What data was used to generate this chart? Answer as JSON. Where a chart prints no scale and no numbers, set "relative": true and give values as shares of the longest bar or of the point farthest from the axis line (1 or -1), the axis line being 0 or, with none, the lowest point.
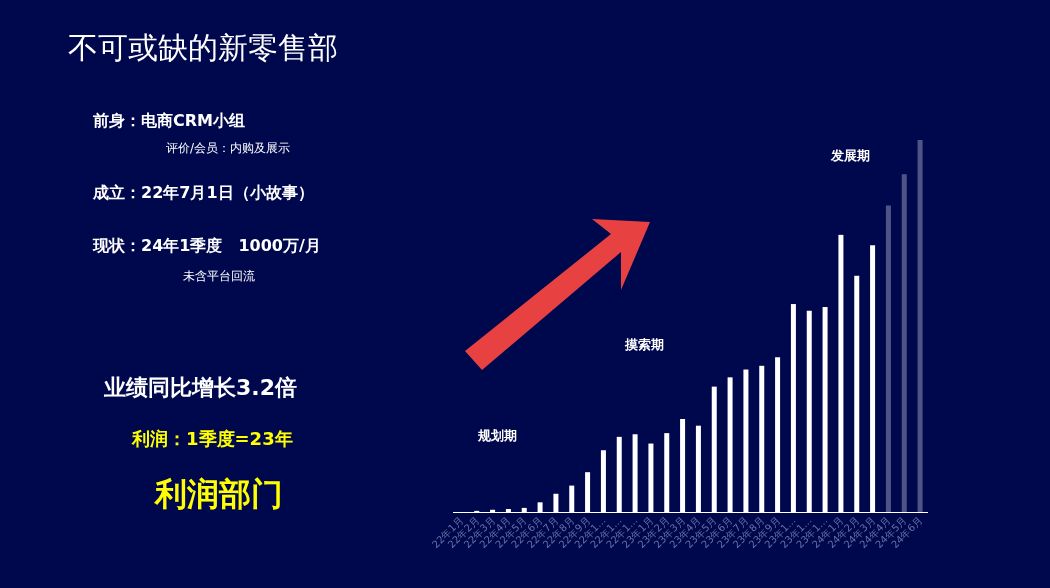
{
  "chart_data": {
    "type": "bar",
    "relative": true,
    "title": "不可或缺的新零售部",
    "categories": [
      "22年1月",
      "22年2月",
      "22年3月",
      "22年4月",
      "22年5月",
      "22年6月",
      "22年7月",
      "22年8月",
      "22年9月",
      "22年1…",
      "22年1…",
      "22年1…",
      "23年1月",
      "23年2月",
      "23年3月",
      "23年4月",
      "23年5月",
      "23年6月",
      "23年7月",
      "23年8月",
      "23年9月",
      "23年1…",
      "23年1…",
      "23年1…",
      "24年1月",
      "24年2月",
      "24年3月",
      "24年4月",
      "24年5月",
      "24年6月"
    ],
    "values": [
      0,
      0.003,
      0.006,
      0.008,
      0.011,
      0.026,
      0.049,
      0.071,
      0.107,
      0.166,
      0.202,
      0.209,
      0.184,
      0.212,
      0.25,
      0.232,
      0.337,
      0.362,
      0.383,
      0.393,
      0.416,
      0.559,
      0.541,
      0.551,
      0.745,
      0.635,
      0.717,
      0.824,
      0.908,
      1
    ],
    "colors": [
      "#ffffff",
      "#ffffff",
      "#ffffff",
      "#ffffff",
      "#ffffff",
      "#ffffff",
      "#ffffff",
      "#ffffff",
      "#ffffff",
      "#ffffff",
      "#ffffff",
      "#ffffff",
      "#ffffff",
      "#ffffff",
      "#ffffff",
      "#ffffff",
      "#ffffff",
      "#ffffff",
      "#ffffff",
      "#ffffff",
      "#ffffff",
      "#ffffff",
      "#ffffff",
      "#ffffff",
      "#ffffff",
      "#ffffff",
      "#ffffff",
      "#4f5488",
      "#4f5488",
      "#4f5488"
    ],
    "annotations": [
      "前身：电商CRM小组",
      "评价/会员：内购及展示",
      "成立：22年7月1日（小故事）",
      "现状：24年1季度　1000万/月",
      "未含平台回流",
      "业绩同比增长3.2倍",
      "利润：1季度=23年",
      "利润部门",
      "规划期",
      "摸索期",
      "发展期"
    ]
  }
}
